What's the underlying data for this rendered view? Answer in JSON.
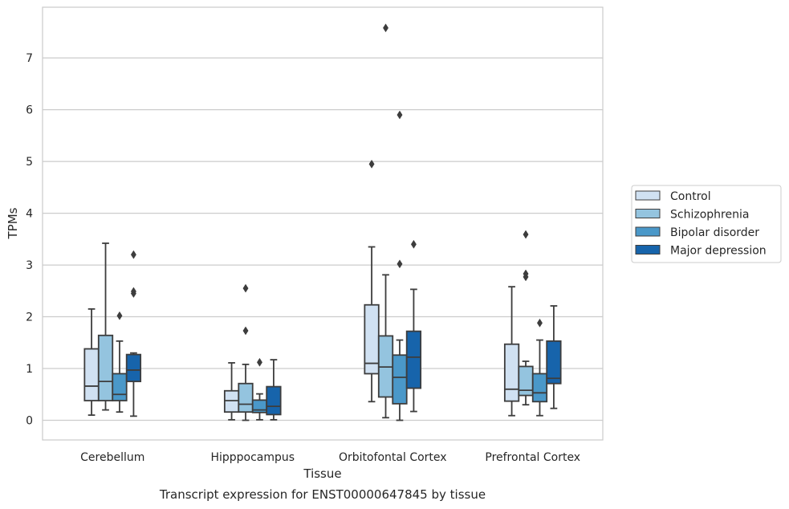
{
  "caption": "Transcript expression for ENST00000647845 by tissue",
  "chart_data": {
    "type": "boxplot",
    "xlabel": "Tissue",
    "ylabel": "TPMs",
    "ylim": [
      -0.38,
      7.98
    ],
    "yticks": [
      0,
      1,
      2,
      3,
      4,
      5,
      6,
      7
    ],
    "grid": "horizontal",
    "legend_placement": "right",
    "categories": [
      "Cerebellum",
      "Hipppocampus",
      "Orbitofontal Cortex",
      "Prefrontal Cortex"
    ],
    "series": [
      {
        "name": "Control",
        "color": "#d0e1f2",
        "boxes": [
          {
            "whisker_low": 0.1,
            "q1": 0.38,
            "median": 0.66,
            "q3": 1.38,
            "whisker_high": 2.15,
            "outliers": []
          },
          {
            "whisker_low": 0.01,
            "q1": 0.16,
            "median": 0.38,
            "q3": 0.57,
            "whisker_high": 1.11,
            "outliers": []
          },
          {
            "whisker_low": 0.36,
            "q1": 0.9,
            "median": 1.1,
            "q3": 2.23,
            "whisker_high": 3.35,
            "outliers": [
              4.95
            ]
          },
          {
            "whisker_low": 0.09,
            "q1": 0.37,
            "median": 0.6,
            "q3": 1.47,
            "whisker_high": 2.58,
            "outliers": []
          }
        ]
      },
      {
        "name": "Schizophrenia",
        "color": "#94c4df",
        "boxes": [
          {
            "whisker_low": 0.2,
            "q1": 0.38,
            "median": 0.75,
            "q3": 1.64,
            "whisker_high": 3.42,
            "outliers": []
          },
          {
            "whisker_low": 0.0,
            "q1": 0.16,
            "median": 0.31,
            "q3": 0.71,
            "whisker_high": 1.08,
            "outliers": [
              1.73,
              2.55
            ]
          },
          {
            "whisker_low": 0.05,
            "q1": 0.45,
            "median": 1.03,
            "q3": 1.63,
            "whisker_high": 2.81,
            "outliers": [
              7.58
            ]
          },
          {
            "whisker_low": 0.3,
            "q1": 0.48,
            "median": 0.58,
            "q3": 1.04,
            "whisker_high": 1.14,
            "outliers": [
              2.77,
              2.83,
              3.59
            ]
          }
        ]
      },
      {
        "name": "Bipolar disorder",
        "color": "#4a98c9",
        "boxes": [
          {
            "whisker_low": 0.16,
            "q1": 0.38,
            "median": 0.5,
            "q3": 0.9,
            "whisker_high": 1.53,
            "outliers": [
              2.02
            ]
          },
          {
            "whisker_low": 0.01,
            "q1": 0.15,
            "median": 0.2,
            "q3": 0.39,
            "whisker_high": 0.51,
            "outliers": [
              1.12
            ]
          },
          {
            "whisker_low": 0.0,
            "q1": 0.32,
            "median": 0.83,
            "q3": 1.26,
            "whisker_high": 1.55,
            "outliers": [
              3.02,
              5.9
            ]
          },
          {
            "whisker_low": 0.09,
            "q1": 0.36,
            "median": 0.53,
            "q3": 0.9,
            "whisker_high": 1.55,
            "outliers": [
              1.88
            ]
          }
        ]
      },
      {
        "name": "Major depression",
        "color": "#1764ab",
        "boxes": [
          {
            "whisker_low": 0.08,
            "q1": 0.75,
            "median": 0.97,
            "q3": 1.27,
            "whisker_high": 1.3,
            "outliers": [
              2.45,
              2.49,
              3.2
            ]
          },
          {
            "whisker_low": 0.01,
            "q1": 0.11,
            "median": 0.27,
            "q3": 0.65,
            "whisker_high": 1.17,
            "outliers": []
          },
          {
            "whisker_low": 0.17,
            "q1": 0.62,
            "median": 1.22,
            "q3": 1.72,
            "whisker_high": 2.53,
            "outliers": [
              3.4
            ]
          },
          {
            "whisker_low": 0.23,
            "q1": 0.71,
            "median": 0.81,
            "q3": 1.53,
            "whisker_high": 2.21,
            "outliers": []
          }
        ]
      }
    ]
  }
}
